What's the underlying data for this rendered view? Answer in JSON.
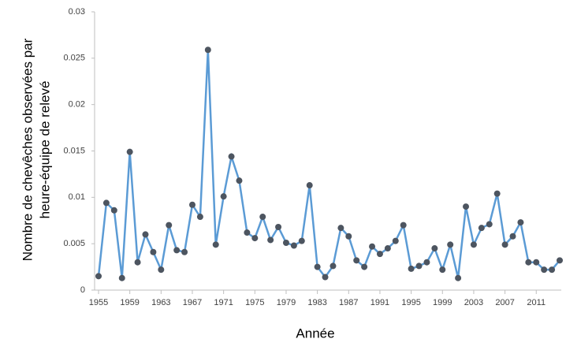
{
  "chart_data": {
    "type": "line",
    "xlabel": "Année",
    "ylabel": [
      "Nombre de chevêches observées par",
      "heure-équipe de relevé"
    ],
    "x": [
      1955,
      1956,
      1957,
      1958,
      1959,
      1960,
      1961,
      1962,
      1963,
      1964,
      1965,
      1966,
      1967,
      1968,
      1969,
      1970,
      1971,
      1972,
      1973,
      1974,
      1975,
      1976,
      1977,
      1978,
      1979,
      1980,
      1981,
      1982,
      1983,
      1984,
      1985,
      1986,
      1987,
      1988,
      1989,
      1990,
      1991,
      1992,
      1993,
      1994,
      1995,
      1996,
      1997,
      1998,
      1999,
      2000,
      2001,
      2002,
      2003,
      2004,
      2005,
      2006,
      2007,
      2008,
      2009,
      2010,
      2011,
      2012,
      2013,
      2014
    ],
    "series": [
      {
        "name": "Chevêches",
        "color": "#5b9bd5",
        "marker_color": "#4d5560",
        "values": [
          0.0015,
          0.0094,
          0.0086,
          0.0013,
          0.0149,
          0.003,
          0.006,
          0.0041,
          0.0022,
          0.007,
          0.0043,
          0.0041,
          0.0092,
          0.0079,
          0.0259,
          0.0049,
          0.0101,
          0.0144,
          0.0118,
          0.0062,
          0.0056,
          0.0079,
          0.0054,
          0.0068,
          0.0051,
          0.0048,
          0.0053,
          0.0113,
          0.0025,
          0.0014,
          0.0026,
          0.0067,
          0.0058,
          0.0032,
          0.0025,
          0.0047,
          0.0039,
          0.0045,
          0.0053,
          0.007,
          0.0023,
          0.0026,
          0.003,
          0.0045,
          0.0022,
          0.0049,
          0.0013,
          0.009,
          0.0049,
          0.0067,
          0.0071,
          0.0104,
          0.0049,
          0.0058,
          0.0073,
          0.003,
          0.003,
          0.0022,
          0.0022,
          0.0032
        ]
      }
    ],
    "xlim": [
      1955,
      2014
    ],
    "xticks": [
      1955,
      1959,
      1963,
      1967,
      1971,
      1975,
      1979,
      1983,
      1987,
      1991,
      1995,
      1999,
      2003,
      2007,
      2011
    ],
    "ylim": [
      0,
      0.03
    ],
    "yticks": [
      0,
      0.005,
      0.01,
      0.015,
      0.02,
      0.025,
      0.03
    ]
  }
}
